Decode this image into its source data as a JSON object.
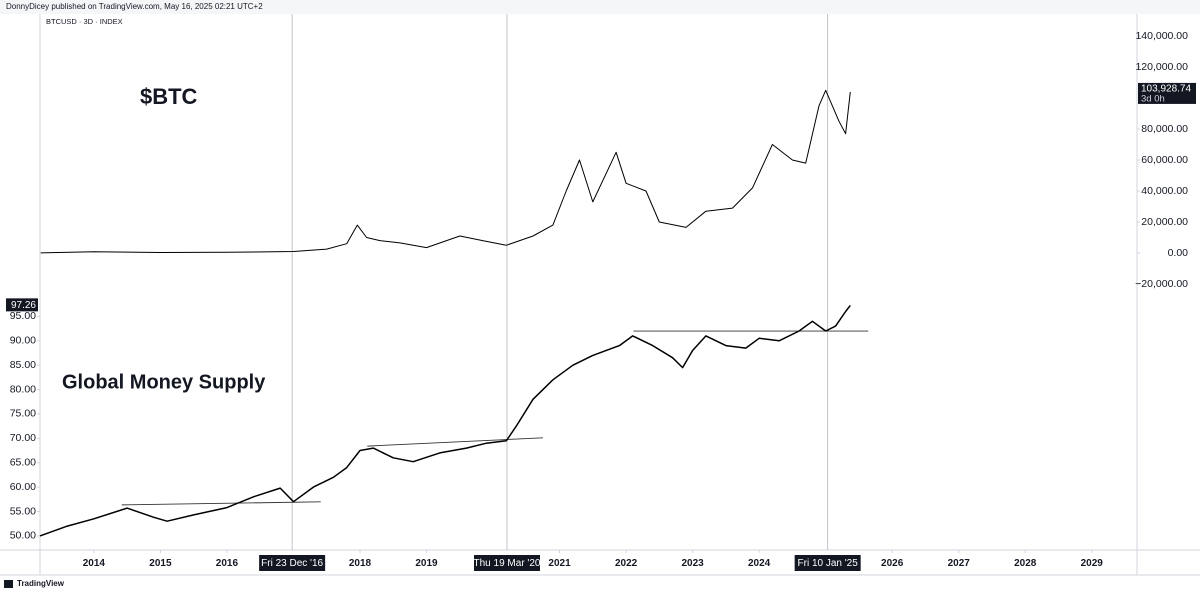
{
  "header": "DonnyDicey published on TradingView.com, May 16, 2025 02:21 UTC+2",
  "footer": "TradingView",
  "chart_data": {
    "type": "line",
    "symbol": "BTCUSD · 3D · INDEX",
    "xlim": [
      2013.19,
      2029.68
    ],
    "xticks": [
      2014,
      2015,
      2016,
      {
        "value": 2016.98,
        "label": "Fri 23 Dec '16"
      },
      2018,
      2019,
      {
        "value": 2020.21,
        "label": "Thu 19 Mar '20"
      },
      2021,
      2022,
      2023,
      2024,
      {
        "value": 2025.03,
        "label": "Fri 10 Jan '25"
      },
      2026,
      2027,
      2028,
      2029
    ],
    "ylim": [
      47.1,
      157
    ],
    "yticks": [
      {
        "value": 50,
        "label": "50.00"
      },
      {
        "value": 55,
        "label": "55.00"
      },
      {
        "value": 60,
        "label": "60.00"
      },
      {
        "value": 65,
        "label": "65.00"
      },
      {
        "value": 70,
        "label": "70.00"
      },
      {
        "value": 75,
        "label": "75.00"
      },
      {
        "value": 80,
        "label": "80.00"
      },
      {
        "value": 85,
        "label": "85.00"
      },
      {
        "value": 90,
        "label": "90.00"
      },
      {
        "value": 95,
        "label": "95.00"
      }
    ],
    "y2lim": [
      -191600,
      154200
    ],
    "y2ticks": [
      {
        "value": -20000,
        "label": "−20,000.00"
      },
      {
        "value": 0,
        "label": "0.00"
      },
      {
        "value": 20000,
        "label": "20,000.00"
      },
      {
        "value": 40000,
        "label": "40,000.00"
      },
      {
        "value": 60000,
        "label": "60,000.00"
      },
      {
        "value": 80000,
        "label": "80,000.00"
      },
      {
        "value": 120000,
        "label": "120,000.00"
      },
      {
        "value": 140000,
        "label": "140,000.00"
      }
    ],
    "series": [
      {
        "name": "$BTC",
        "color": "#000000",
        "axis": "y2",
        "x": [
          2013.2,
          2014.0,
          2015.0,
          2016.0,
          2017.0,
          2017.5,
          2017.8,
          2017.96,
          2018.1,
          2018.3,
          2018.6,
          2019.0,
          2019.5,
          2019.9,
          2020.2,
          2020.6,
          2020.9,
          2021.1,
          2021.3,
          2021.5,
          2021.85,
          2022.0,
          2022.3,
          2022.5,
          2022.9,
          2023.2,
          2023.6,
          2023.9,
          2024.2,
          2024.5,
          2024.7,
          2024.9,
          2025.0,
          2025.2,
          2025.3,
          2025.37
        ],
        "values": [
          100,
          800,
          300,
          430,
          1000,
          2500,
          6000,
          18000,
          10000,
          8000,
          6500,
          3500,
          11000,
          7500,
          5000,
          11000,
          18000,
          40000,
          60000,
          33000,
          65000,
          45000,
          40000,
          20000,
          16500,
          27000,
          29000,
          42000,
          70000,
          60000,
          58000,
          95000,
          105000,
          85000,
          77000,
          103928.74
        ],
        "last_label": {
          "value": 103928.74,
          "label": "103,928.74",
          "countdown": "3d 0h"
        }
      },
      {
        "name": "Global Money Supply",
        "color": "#000000",
        "x": [
          2013.19,
          2013.6,
          2014.0,
          2014.5,
          2014.9,
          2015.1,
          2015.5,
          2016.0,
          2016.4,
          2016.8,
          2017.0,
          2017.3,
          2017.6,
          2017.8,
          2018.0,
          2018.2,
          2018.5,
          2018.8,
          2019.2,
          2019.6,
          2019.9,
          2020.2,
          2020.35,
          2020.6,
          2020.9,
          2021.2,
          2021.5,
          2021.9,
          2022.1,
          2022.4,
          2022.7,
          2022.85,
          2023.0,
          2023.2,
          2023.5,
          2023.8,
          2024.0,
          2024.3,
          2024.6,
          2024.8,
          2025.0,
          2025.15,
          2025.3,
          2025.37
        ],
        "values": [
          50,
          52,
          53.5,
          55.7,
          53.8,
          53,
          54.3,
          55.8,
          58,
          59.8,
          57,
          60,
          62,
          64,
          67.5,
          68,
          66,
          65.2,
          67,
          68,
          69,
          69.5,
          72.5,
          78,
          82,
          85,
          87,
          89,
          91,
          89,
          86.5,
          84.5,
          88,
          91,
          89,
          88.5,
          90.5,
          90,
          92,
          94,
          92,
          93,
          96,
          97.26
        ],
        "last_label": {
          "value": 97.26,
          "label": "97.26"
        }
      }
    ],
    "trend_lines": [
      {
        "x": [
          2014.42,
          2017.41
        ],
        "y": [
          56.35,
          56.97
        ]
      },
      {
        "x": [
          2018.11,
          2020.75
        ],
        "y": [
          68.4,
          70.1
        ]
      },
      {
        "x": [
          2022.11,
          2025.64
        ],
        "y": [
          92.0,
          92.0
        ]
      }
    ]
  }
}
